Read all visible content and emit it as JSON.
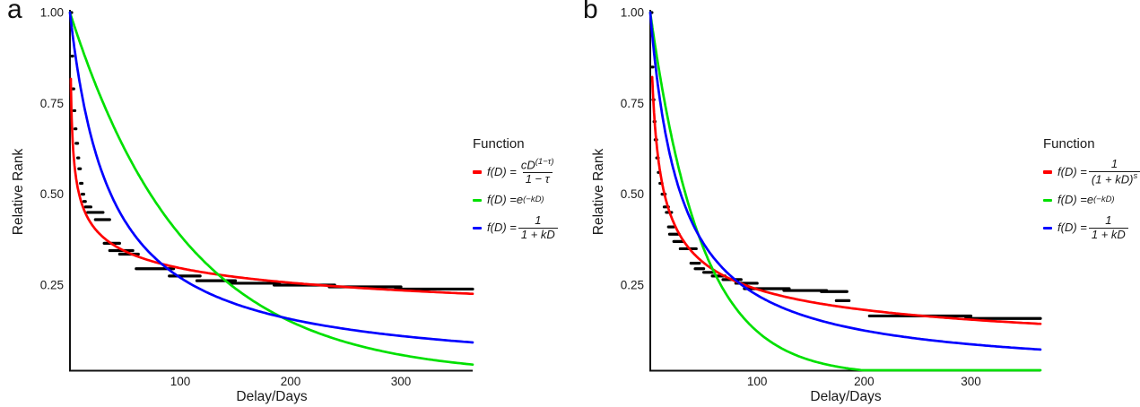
{
  "panels": [
    {
      "label": "a",
      "y_axis": {
        "title": "Relative Rank",
        "ticks": [
          "1.00",
          "0.75",
          "0.50",
          "0.25"
        ],
        "tick_values": [
          1.0,
          0.75,
          0.5,
          0.25
        ]
      },
      "x_axis": {
        "title": "Delay/Days",
        "ticks": [
          "100",
          "200",
          "300"
        ],
        "tick_values": [
          100,
          200,
          300
        ]
      },
      "legend": {
        "title": "Function",
        "entries": [
          {
            "color": "#ff0000",
            "text": "f(D) = cD^(1−τ) / (1 − τ)",
            "math": {
              "pre": "f(D) = ",
              "frac": {
                "num": [
                  [
                    "cD",
                    "n"
                  ],
                  [
                    "(1−τ)",
                    "sup"
                  ]
                ],
                "den": [
                  [
                    "1 − τ",
                    "n"
                  ]
                ]
              }
            }
          },
          {
            "color": "#00e000",
            "text": "f(D) = e^(−kD)",
            "math": {
              "pre": "f(D) = ",
              "inline": [
                [
                  "e",
                  "n"
                ],
                [
                  "(−kD)",
                  "sup"
                ]
              ]
            }
          },
          {
            "color": "#0000ff",
            "text": "f(D) = 1 / (1 + kD)",
            "math": {
              "pre": "f(D) = ",
              "frac": {
                "num": [
                  [
                    "1",
                    "n"
                  ]
                ],
                "den": [
                  [
                    "1 + kD",
                    "n"
                  ]
                ]
              }
            }
          }
        ]
      },
      "chart_data": {
        "type": "line",
        "title": "",
        "xlabel": "Delay/Days",
        "ylabel": "Relative Rank",
        "xlim": [
          0,
          365
        ],
        "ylim": [
          0,
          1
        ],
        "x_ticks": [
          100,
          200,
          300
        ],
        "y_ticks": [
          0.25,
          0.5,
          0.75,
          1.0
        ],
        "grid": false,
        "legend_position": "right",
        "series": [
          {
            "name": "empirical-rank-steps",
            "color": "#000000",
            "style": "step-segments",
            "segments": [
              [
                1,
                1.6,
                1.0
              ],
              [
                1.6,
                2.5,
                0.88
              ],
              [
                2.5,
                3.5,
                0.79
              ],
              [
                3.5,
                4.5,
                0.73
              ],
              [
                4.5,
                5.5,
                0.68
              ],
              [
                5.5,
                7,
                0.64
              ],
              [
                7,
                8,
                0.6
              ],
              [
                8,
                9.5,
                0.57
              ],
              [
                9.5,
                11,
                0.53
              ],
              [
                11,
                12.5,
                0.5
              ],
              [
                12.5,
                14,
                0.48
              ],
              [
                14,
                19,
                0.465
              ],
              [
                16,
                30,
                0.45
              ],
              [
                23,
                36,
                0.43
              ],
              [
                31,
                45,
                0.365
              ],
              [
                36,
                57,
                0.345
              ],
              [
                45,
                62,
                0.335
              ],
              [
                60,
                94,
                0.295
              ],
              [
                90,
                118,
                0.275
              ],
              [
                115,
                150,
                0.262
              ],
              [
                145,
                190,
                0.255
              ],
              [
                185,
                240,
                0.25
              ],
              [
                235,
                300,
                0.245
              ],
              [
                295,
                365,
                0.239
              ]
            ]
          },
          {
            "name": "hyperbolic-power-fit",
            "color": "#ff0000",
            "style": "curve",
            "model": "power",
            "params": {
              "a": 0.78,
              "b": 0.21
            },
            "domain": [
              0.8,
              365
            ]
          },
          {
            "name": "exponential-fit",
            "color": "#00e000",
            "style": "curve",
            "model": "exponential",
            "params": {
              "k": 0.0095
            },
            "domain": [
              0,
              365
            ]
          },
          {
            "name": "hyperbolic-fit",
            "color": "#0000ff",
            "style": "curve",
            "model": "hyperbola",
            "params": {
              "k": 0.027
            },
            "domain": [
              0,
              365
            ]
          }
        ]
      }
    },
    {
      "label": "b",
      "y_axis": {
        "title": "Relative Rank",
        "ticks": [
          "1.00",
          "0.75",
          "0.50",
          "0.25"
        ],
        "tick_values": [
          1.0,
          0.75,
          0.5,
          0.25
        ]
      },
      "x_axis": {
        "title": "Delay/Days",
        "ticks": [
          "100",
          "200",
          "300"
        ],
        "tick_values": [
          100,
          200,
          300
        ]
      },
      "legend": {
        "title": "Function",
        "entries": [
          {
            "color": "#ff0000",
            "text": "f(D) = 1 / (1 + kD)^s",
            "math": {
              "pre": "f(D) = ",
              "frac": {
                "num": [
                  [
                    "1",
                    "n"
                  ]
                ],
                "den": [
                  [
                    "(1 + kD)",
                    "n"
                  ],
                  [
                    "s",
                    "sup"
                  ]
                ]
              }
            }
          },
          {
            "color": "#00e000",
            "text": "f(D) = e^(−kD)",
            "math": {
              "pre": "f(D) = ",
              "inline": [
                [
                  "e",
                  "n"
                ],
                [
                  "(−kD)",
                  "sup"
                ]
              ]
            }
          },
          {
            "color": "#0000ff",
            "text": "f(D) = 1 / (1 + kD)",
            "math": {
              "pre": "f(D) = ",
              "frac": {
                "num": [
                  [
                    "1",
                    "n"
                  ]
                ],
                "den": [
                  [
                    "1 + kD",
                    "n"
                  ]
                ]
              }
            }
          }
        ]
      },
      "chart_data": {
        "type": "line",
        "title": "",
        "xlabel": "Delay/Days",
        "ylabel": "Relative Rank",
        "xlim": [
          0,
          365
        ],
        "ylim": [
          0,
          1
        ],
        "x_ticks": [
          100,
          200,
          300
        ],
        "y_ticks": [
          0.25,
          0.5,
          0.75,
          1.0
        ],
        "grid": false,
        "legend_position": "right",
        "series": [
          {
            "name": "empirical-rank-steps",
            "color": "#000000",
            "style": "step-segments",
            "segments": [
              [
                1,
                1.6,
                1.0
              ],
              [
                1.6,
                2.5,
                0.85
              ],
              [
                2.5,
                3.5,
                0.76
              ],
              [
                3.5,
                4.5,
                0.7
              ],
              [
                4.5,
                6,
                0.65
              ],
              [
                6,
                7.5,
                0.6
              ],
              [
                7.5,
                9,
                0.56
              ],
              [
                9,
                11,
                0.53
              ],
              [
                11,
                14,
                0.5
              ],
              [
                13,
                17,
                0.465
              ],
              [
                15,
                20,
                0.45
              ],
              [
                17,
                22,
                0.41
              ],
              [
                18,
                27,
                0.39
              ],
              [
                22,
                31,
                0.37
              ],
              [
                28,
                43,
                0.35
              ],
              [
                38,
                46,
                0.31
              ],
              [
                42,
                50,
                0.295
              ],
              [
                50,
                60,
                0.285
              ],
              [
                58,
                70,
                0.275
              ],
              [
                68,
                85,
                0.265
              ],
              [
                80,
                100,
                0.255
              ],
              [
                88,
                130,
                0.24
              ],
              [
                125,
                165,
                0.235
              ],
              [
                160,
                184,
                0.232
              ],
              [
                174,
                186,
                0.207
              ],
              [
                205,
                300,
                0.165
              ],
              [
                295,
                365,
                0.158
              ]
            ]
          },
          {
            "name": "generalized-hyperbola-fit",
            "color": "#ff0000",
            "style": "curve",
            "model": "generalized-hyperbola",
            "params": {
              "k": 0.35,
              "s": 0.4
            },
            "domain": [
              1.8,
              365
            ]
          },
          {
            "name": "exponential-fit",
            "color": "#00e000",
            "style": "curve",
            "model": "exponential",
            "params": {
              "k": 0.021
            },
            "domain": [
              0,
              365
            ]
          },
          {
            "name": "hyperbolic-fit",
            "color": "#0000ff",
            "style": "curve",
            "model": "hyperbola",
            "params": {
              "k": 0.035
            },
            "domain": [
              0,
              365
            ]
          }
        ]
      }
    }
  ]
}
